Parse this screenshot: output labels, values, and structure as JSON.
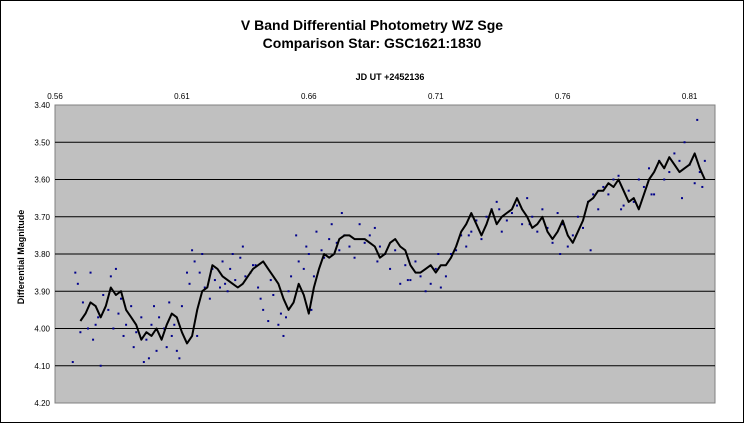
{
  "chart_data": {
    "type": "scatter",
    "title": "V Band Differential Photometry WZ Sge",
    "subtitle": "Comparison Star: GSC1621:1830",
    "xlabel": "JD UT +2452136",
    "ylabel": "Differential Magnitude",
    "xlim": [
      0.56,
      0.82
    ],
    "ylim": [
      3.4,
      4.2
    ],
    "y_inverted": true,
    "x_axis_position": "top",
    "x_ticks": [
      "0.56",
      "0.61",
      "0.66",
      "0.71",
      "0.76",
      "0.81"
    ],
    "y_ticks": [
      "3.40",
      "3.50",
      "3.60",
      "3.70",
      "3.80",
      "3.90",
      "4.00",
      "4.10",
      "4.20"
    ],
    "grid": "horizontal",
    "plot_background": "#c0c0c0",
    "point_color": "#00008b",
    "line_color": "#000000",
    "series": [
      {
        "style": "line",
        "x": [
          0.57,
          0.572,
          0.574,
          0.576,
          0.578,
          0.58,
          0.582,
          0.584,
          0.586,
          0.588,
          0.59,
          0.592,
          0.594,
          0.596,
          0.598,
          0.6,
          0.602,
          0.604,
          0.606,
          0.608,
          0.61,
          0.612,
          0.614,
          0.616,
          0.618,
          0.62,
          0.622,
          0.624,
          0.626,
          0.628,
          0.63,
          0.632,
          0.634,
          0.636,
          0.638,
          0.64,
          0.642,
          0.644,
          0.646,
          0.648,
          0.65,
          0.652,
          0.654,
          0.656,
          0.658,
          0.66,
          0.662,
          0.664,
          0.666,
          0.668,
          0.67,
          0.672,
          0.674,
          0.676,
          0.678,
          0.68,
          0.682,
          0.684,
          0.686,
          0.688,
          0.69,
          0.692,
          0.694,
          0.696,
          0.698,
          0.7,
          0.702,
          0.704,
          0.706,
          0.708,
          0.71,
          0.712,
          0.714,
          0.716,
          0.718,
          0.72,
          0.722,
          0.724,
          0.726,
          0.728,
          0.73,
          0.732,
          0.734,
          0.736,
          0.738,
          0.74,
          0.742,
          0.744,
          0.746,
          0.748,
          0.75,
          0.752,
          0.754,
          0.756,
          0.758,
          0.76,
          0.762,
          0.764,
          0.766,
          0.768,
          0.77,
          0.772,
          0.774,
          0.776,
          0.778,
          0.78,
          0.782,
          0.784,
          0.786,
          0.788,
          0.79,
          0.792,
          0.794,
          0.796,
          0.798,
          0.8,
          0.802,
          0.804,
          0.806,
          0.808,
          0.81,
          0.812,
          0.814,
          0.816
        ],
        "y": [
          3.98,
          3.96,
          3.93,
          3.94,
          3.97,
          3.94,
          3.89,
          3.91,
          3.9,
          3.95,
          3.97,
          3.99,
          4.03,
          4.01,
          4.02,
          4.0,
          4.03,
          3.99,
          3.96,
          3.97,
          4.01,
          4.04,
          4.02,
          3.95,
          3.9,
          3.89,
          3.83,
          3.84,
          3.86,
          3.87,
          3.88,
          3.89,
          3.88,
          3.86,
          3.84,
          3.83,
          3.82,
          3.84,
          3.86,
          3.88,
          3.92,
          3.95,
          3.93,
          3.88,
          3.91,
          3.96,
          3.89,
          3.84,
          3.8,
          3.81,
          3.8,
          3.76,
          3.75,
          3.75,
          3.76,
          3.76,
          3.76,
          3.77,
          3.78,
          3.81,
          3.8,
          3.77,
          3.76,
          3.78,
          3.79,
          3.83,
          3.85,
          3.85,
          3.84,
          3.83,
          3.85,
          3.83,
          3.83,
          3.81,
          3.78,
          3.74,
          3.72,
          3.69,
          3.72,
          3.75,
          3.72,
          3.68,
          3.72,
          3.7,
          3.69,
          3.68,
          3.65,
          3.68,
          3.7,
          3.73,
          3.72,
          3.7,
          3.74,
          3.76,
          3.74,
          3.71,
          3.75,
          3.77,
          3.74,
          3.71,
          3.66,
          3.65,
          3.63,
          3.63,
          3.61,
          3.62,
          3.6,
          3.63,
          3.66,
          3.65,
          3.68,
          3.64,
          3.6,
          3.58,
          3.55,
          3.57,
          3.54,
          3.56,
          3.58,
          3.57,
          3.56,
          3.53,
          3.57,
          3.6
        ]
      },
      {
        "style": "points",
        "x": [
          0.568,
          0.57,
          0.571,
          0.573,
          0.574,
          0.575,
          0.577,
          0.578,
          0.579,
          0.581,
          0.582,
          0.583,
          0.584,
          0.586,
          0.587,
          0.588,
          0.59,
          0.591,
          0.592,
          0.594,
          0.595,
          0.596,
          0.598,
          0.599,
          0.6,
          0.601,
          0.603,
          0.604,
          0.605,
          0.606,
          0.608,
          0.609,
          0.61,
          0.612,
          0.613,
          0.614,
          0.615,
          0.617,
          0.618,
          0.619,
          0.621,
          0.622,
          0.623,
          0.625,
          0.626,
          0.627,
          0.629,
          0.63,
          0.631,
          0.633,
          0.634,
          0.635,
          0.637,
          0.638,
          0.64,
          0.641,
          0.642,
          0.644,
          0.645,
          0.646,
          0.648,
          0.649,
          0.65,
          0.652,
          0.653,
          0.655,
          0.656,
          0.658,
          0.659,
          0.66,
          0.662,
          0.663,
          0.665,
          0.666,
          0.668,
          0.669,
          0.671,
          0.672,
          0.674,
          0.676,
          0.678,
          0.68,
          0.682,
          0.684,
          0.686,
          0.688,
          0.69,
          0.692,
          0.694,
          0.696,
          0.698,
          0.7,
          0.702,
          0.704,
          0.706,
          0.708,
          0.71,
          0.712,
          0.714,
          0.716,
          0.718,
          0.72,
          0.722,
          0.724,
          0.726,
          0.728,
          0.73,
          0.732,
          0.734,
          0.736,
          0.738,
          0.74,
          0.742,
          0.744,
          0.746,
          0.748,
          0.75,
          0.752,
          0.754,
          0.756,
          0.758,
          0.76,
          0.762,
          0.764,
          0.766,
          0.768,
          0.77,
          0.772,
          0.774,
          0.776,
          0.778,
          0.78,
          0.782,
          0.784,
          0.786,
          0.788,
          0.79,
          0.792,
          0.794,
          0.796,
          0.798,
          0.8,
          0.802,
          0.804,
          0.806,
          0.808,
          0.81,
          0.812,
          0.814,
          0.816,
          0.813,
          0.815,
          0.569,
          0.576,
          0.585,
          0.597,
          0.607,
          0.616,
          0.628,
          0.639,
          0.651,
          0.661,
          0.673,
          0.687,
          0.699,
          0.711,
          0.723,
          0.735,
          0.747,
          0.759,
          0.771,
          0.783,
          0.795,
          0.807,
          0.567
        ],
        "y": [
          3.85,
          4.01,
          3.93,
          4.0,
          3.85,
          4.03,
          3.97,
          4.1,
          3.91,
          3.95,
          3.86,
          4.0,
          3.84,
          3.92,
          4.02,
          3.99,
          3.94,
          4.05,
          4.01,
          3.97,
          4.09,
          4.03,
          3.99,
          3.94,
          4.06,
          3.97,
          4.0,
          4.05,
          3.93,
          4.02,
          4.06,
          4.08,
          3.94,
          3.85,
          3.88,
          3.79,
          3.82,
          3.85,
          3.8,
          3.89,
          3.92,
          3.84,
          3.87,
          3.89,
          3.82,
          3.88,
          3.84,
          3.8,
          3.87,
          3.81,
          3.78,
          3.86,
          3.85,
          3.83,
          3.89,
          3.92,
          3.95,
          3.98,
          3.87,
          3.91,
          3.99,
          3.96,
          4.02,
          3.9,
          3.86,
          3.75,
          3.82,
          3.84,
          3.78,
          3.8,
          3.86,
          3.74,
          3.79,
          3.81,
          3.76,
          3.72,
          3.77,
          3.79,
          3.75,
          3.78,
          3.81,
          3.72,
          3.77,
          3.75,
          3.73,
          3.78,
          3.8,
          3.84,
          3.79,
          3.88,
          3.83,
          3.87,
          3.82,
          3.86,
          3.9,
          3.88,
          3.84,
          3.89,
          3.86,
          3.8,
          3.79,
          3.75,
          3.78,
          3.74,
          3.71,
          3.76,
          3.7,
          3.68,
          3.66,
          3.74,
          3.71,
          3.69,
          3.67,
          3.72,
          3.65,
          3.7,
          3.74,
          3.68,
          3.73,
          3.77,
          3.69,
          3.72,
          3.78,
          3.75,
          3.7,
          3.73,
          3.66,
          3.64,
          3.68,
          3.62,
          3.64,
          3.6,
          3.59,
          3.67,
          3.63,
          3.66,
          3.6,
          3.62,
          3.57,
          3.64,
          3.55,
          3.6,
          3.58,
          3.53,
          3.55,
          3.5,
          3.56,
          3.61,
          3.58,
          3.55,
          3.44,
          3.62,
          3.88,
          3.99,
          3.96,
          4.08,
          3.99,
          4.02,
          3.9,
          3.83,
          3.97,
          3.95,
          3.69,
          3.82,
          3.87,
          3.8,
          3.75,
          3.68,
          3.72,
          3.8,
          3.79,
          3.68,
          3.64,
          3.65,
          4.09
        ]
      }
    ]
  }
}
